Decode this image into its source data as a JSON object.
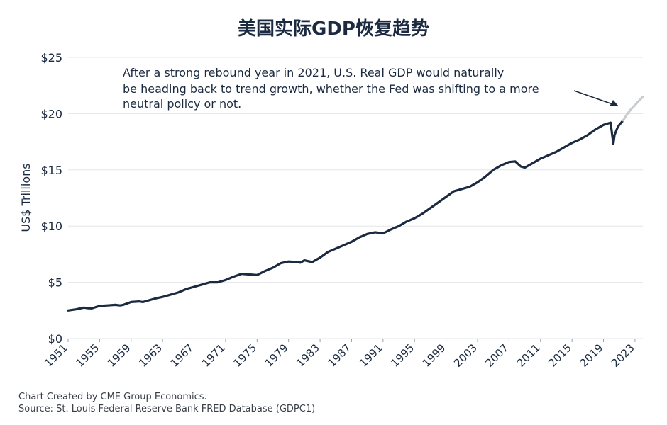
{
  "chart_data": {
    "type": "line",
    "title": "美国实际GDP恢复趋势",
    "ylabel": "US$ Trillions",
    "xlabel": "",
    "ylim": [
      0,
      25
    ],
    "xlim": [
      1951,
      2024
    ],
    "grid": true,
    "y_ticks": [
      "$0",
      "$5",
      "$10",
      "$15",
      "$20",
      "$25"
    ],
    "y_tick_values": [
      0,
      5,
      10,
      15,
      20,
      25
    ],
    "x_ticks": [
      "1951",
      "1955",
      "1959",
      "1963",
      "1967",
      "1971",
      "1975",
      "1979",
      "1983",
      "1987",
      "1991",
      "1995",
      "1999",
      "2003",
      "2007",
      "2011",
      "2015",
      "2019",
      "2023"
    ],
    "colors": {
      "actual": "#1b2a41",
      "trend": "#c8ccd1",
      "grid": "#e3e5e8"
    },
    "series": [
      {
        "x": [
          1951.0,
          1952.0,
          1953.0,
          1953.5,
          1954.0,
          1955.0,
          1956.0,
          1957.0,
          1957.6,
          1958.0,
          1959.0,
          1960.0,
          1960.5,
          1961.0,
          1962.0,
          1963.0,
          1964.0,
          1965.0,
          1966.0,
          1967.0,
          1968.0,
          1969.0,
          1970.0,
          1971.0,
          1972.0,
          1973.0,
          1974.0,
          1975.0,
          1976.0,
          1977.0,
          1978.0,
          1979.0,
          1980.0,
          1980.5,
          1981.0,
          1982.0,
          1983.0,
          1984.0,
          1985.0,
          1986.0,
          1987.0,
          1988.0,
          1989.0,
          1990.0,
          1991.0,
          1992.0,
          1993.0,
          1994.0,
          1995.0,
          1996.0,
          1997.0,
          1998.0,
          1999.0,
          2000.0,
          2001.0,
          2002.0,
          2003.0,
          2004.0,
          2005.0,
          2006.0,
          2007.0,
          2007.8,
          2008.5,
          2009.0,
          2010.0,
          2011.0,
          2012.0,
          2013.0,
          2014.0,
          2015.0,
          2016.0,
          2017.0,
          2018.0,
          2019.0,
          2019.9,
          2020.25,
          2020.4,
          2020.75,
          2021.0,
          2021.5
        ],
        "values": [
          2.5,
          2.6,
          2.75,
          2.7,
          2.68,
          2.9,
          2.95,
          3.0,
          2.95,
          3.0,
          3.25,
          3.3,
          3.25,
          3.35,
          3.55,
          3.7,
          3.9,
          4.1,
          4.4,
          4.6,
          4.8,
          5.0,
          5.0,
          5.2,
          5.5,
          5.75,
          5.7,
          5.65,
          6.0,
          6.3,
          6.7,
          6.85,
          6.8,
          6.75,
          6.95,
          6.8,
          7.2,
          7.7,
          8.0,
          8.3,
          8.6,
          9.0,
          9.3,
          9.45,
          9.35,
          9.7,
          10.0,
          10.4,
          10.7,
          11.1,
          11.6,
          12.1,
          12.6,
          13.1,
          13.3,
          13.5,
          13.9,
          14.4,
          15.0,
          15.4,
          15.7,
          15.75,
          15.3,
          15.2,
          15.6,
          16.0,
          16.3,
          16.6,
          17.0,
          17.4,
          17.7,
          18.1,
          18.6,
          19.0,
          19.2,
          17.3,
          18.1,
          18.7,
          19.0,
          19.4
        ]
      },
      {
        "x": [
          2021.5,
          2022.0,
          2022.5,
          2023.0,
          2023.5,
          2024.0
        ],
        "values": [
          19.4,
          19.95,
          20.4,
          20.75,
          21.15,
          21.5
        ]
      }
    ],
    "annotations": [
      "After a strong rebound year in 2021, U.S. Real GDP would naturally",
      "be heading back to trend growth, whether the Fed was shifting to a more",
      "neutral policy or not."
    ]
  },
  "footer": {
    "credit": "Chart Created by CME Group Economics.",
    "source": "Source: St. Louis Federal Reserve Bank FRED Database (GDPC1)"
  }
}
